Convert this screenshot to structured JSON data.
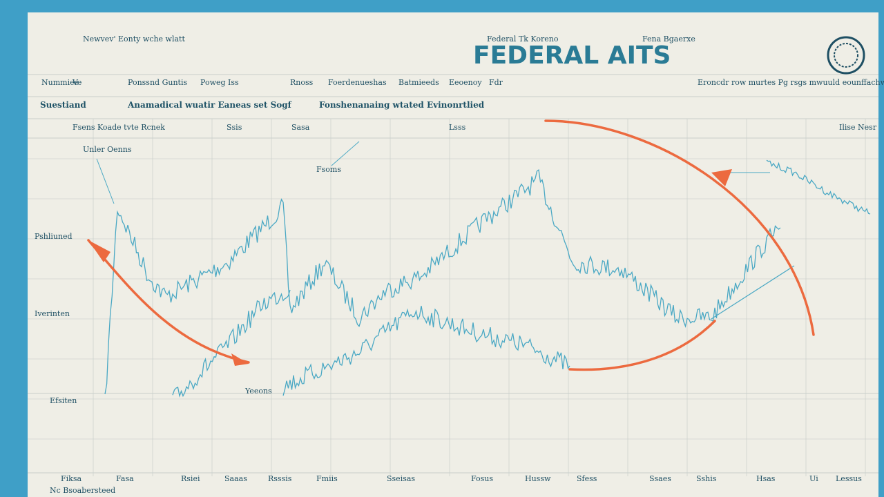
{
  "header": {
    "title": "FEDERAL AITS",
    "left_note": "Newvev' Eonty wche wlatt",
    "center_note": "Federal Tk Koreno",
    "right_note": "Fena Bgaerxe"
  },
  "columns": [
    "Nummiee",
    "Ve",
    "Ponssnd Guntis",
    "Poweg Iss",
    "Rnoss",
    "Foerdenueshas",
    "Batmieeds",
    "Eeoenoy",
    "Fdr",
    "Eroncdr row murtes Pg rsgs mwuuld eounffachww"
  ],
  "subheads": [
    "Suestiand",
    "Anamadical wuatir Eaneas set Sogf",
    "Fonshenanaing wtated Evinonrtlied"
  ],
  "top_labels": [
    "Fsens Koade tvte Rcnek",
    "Ssis",
    "Sasa",
    "Lsss",
    "Ilise Nesr"
  ],
  "annotations": [
    "Unler Oenns",
    "Pshliuned",
    "Iverinten",
    "Efsiten",
    "Fsoms",
    "Yeeons"
  ],
  "bottom_labels": [
    "Fiksa",
    "Fasa",
    "Rsiei",
    "Saaas",
    "Rsssis",
    "Fmiis",
    "Sseisas",
    "Fosus",
    "Hussw",
    "Sfess",
    "Ssaes",
    "Sshis",
    "Hsas",
    "Ui",
    "Lessus"
  ],
  "footer": "Nc Bsoabersteed"
}
